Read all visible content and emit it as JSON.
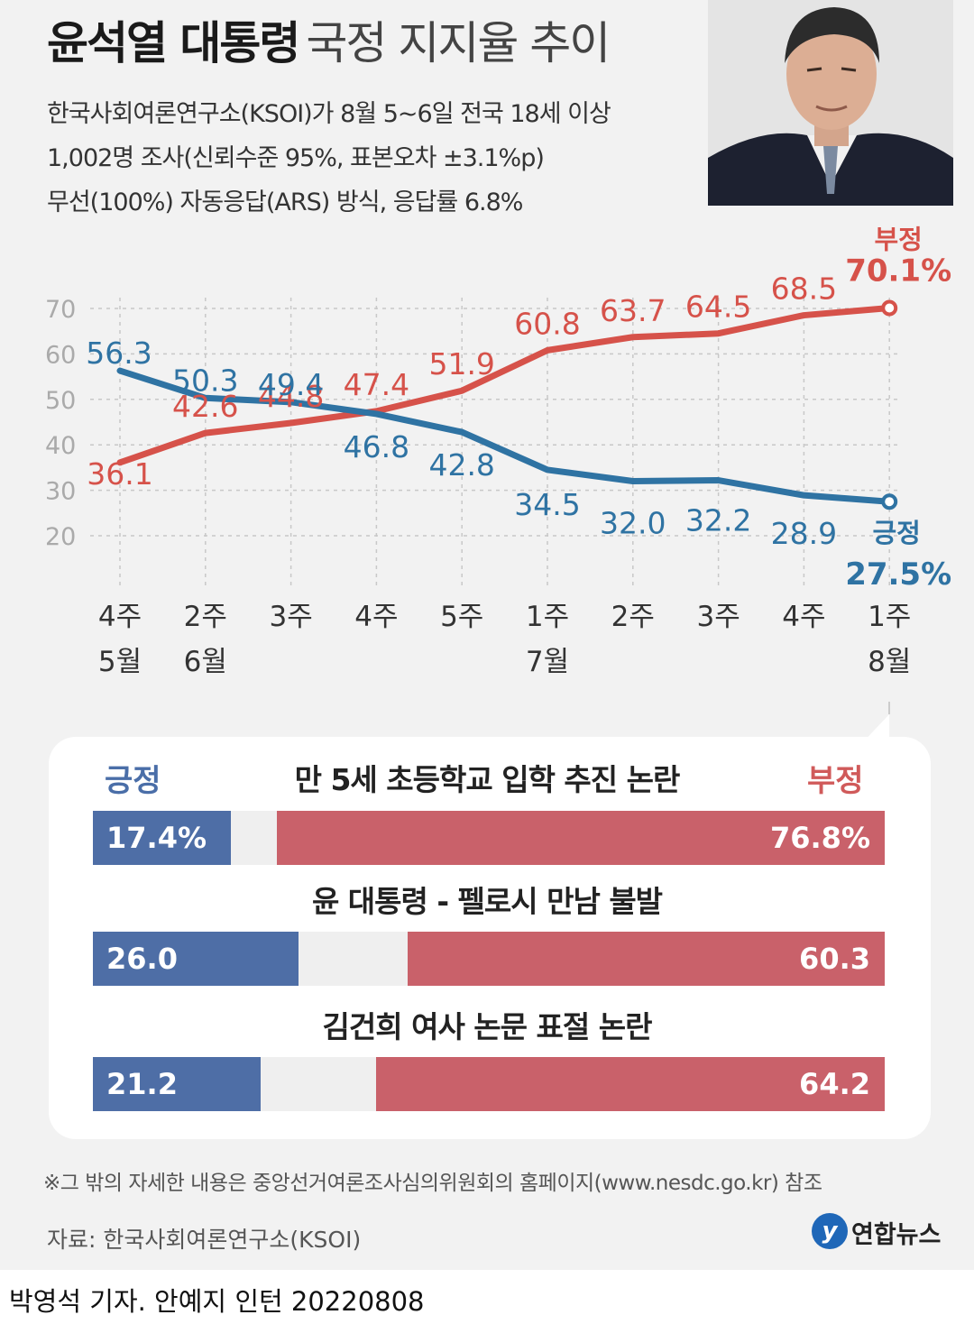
{
  "header": {
    "title_bold": "윤석열 대통령",
    "title_light": "국정 지지율 추이",
    "desc_lines": [
      "한국사회여론연구소(KSOI)가 8월 5~6일 전국 18세 이상",
      "1,002명 조사(신뢰수준 95%, 표본오차 ±3.1%p)",
      "무선(100%) 자동응답(ARS) 방식, 응답률 6.8%"
    ]
  },
  "colors": {
    "positive": "#2f73a3",
    "negative": "#d6524a",
    "bar_positive": "#4e6ea6",
    "bar_negative": "#c9616a"
  },
  "chart_data": [
    {
      "type": "line",
      "categories": [
        "4주 5월",
        "2주 6월",
        "3주",
        "4주",
        "5주",
        "1주 7월",
        "2주",
        "3주",
        "4주",
        "1주 8월"
      ],
      "x_labels_week": [
        "4주",
        "2주",
        "3주",
        "4주",
        "5주",
        "1주",
        "2주",
        "3주",
        "4주",
        "1주"
      ],
      "x_labels_month": [
        "5월",
        "6월",
        "",
        "",
        "",
        "7월",
        "",
        "",
        "",
        "8월"
      ],
      "series": [
        {
          "name": "부정",
          "values": [
            36.1,
            42.6,
            44.8,
            47.4,
            51.9,
            60.8,
            63.7,
            64.5,
            68.5,
            70.1
          ],
          "labels": [
            "36.1",
            "42.6",
            "44.8",
            "47.4",
            "51.9",
            "60.8",
            "63.7",
            "64.5",
            "68.5",
            "70.1%"
          ]
        },
        {
          "name": "긍정",
          "values": [
            56.3,
            50.3,
            49.4,
            46.8,
            42.8,
            34.5,
            32.0,
            32.2,
            28.9,
            27.5
          ],
          "labels": [
            "56.3",
            "50.3",
            "49.4",
            "46.8",
            "42.8",
            "34.5",
            "32.0",
            "32.2",
            "28.9",
            "27.5%"
          ]
        }
      ],
      "yticks": [
        20,
        30,
        40,
        50,
        60,
        70
      ],
      "ylim": [
        15,
        75
      ],
      "grid": "dashed"
    },
    {
      "type": "bar",
      "orientation": "horizontal-stacked",
      "legend": {
        "positive": "긍정",
        "negative": "부정"
      },
      "items": [
        {
          "question": "만 5세 초등학교 입학 추진 논란",
          "positive": 17.4,
          "negative": 76.8,
          "positive_label": "17.4%",
          "negative_label": "76.8%"
        },
        {
          "question": "윤 대통령 - 펠로시 만남 불발",
          "positive": 26.0,
          "negative": 60.3,
          "positive_label": "26.0",
          "negative_label": "60.3"
        },
        {
          "question": "김건희 여사 논문 표절 논란",
          "positive": 21.2,
          "negative": 64.2,
          "positive_label": "21.2",
          "negative_label": "64.2"
        }
      ]
    }
  ],
  "footnote": "※그 밖의 자세한 내용은 중앙선거여론조사심의위원회의 홈페이지(www.nesdc.go.kr) 참조",
  "source": "자료: 한국사회여론연구소(KSOI)",
  "logo": {
    "mark": "y",
    "text": "연합뉴스"
  },
  "credit": "박영석 기자. 안예지 인턴   20220808"
}
